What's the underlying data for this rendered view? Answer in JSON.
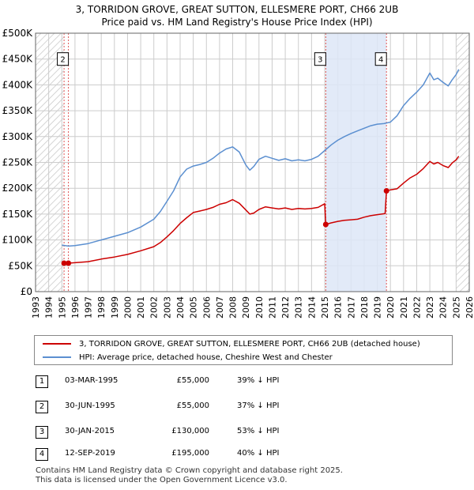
{
  "header": {
    "line1": "3, TORRIDON GROVE, GREAT SUTTON, ELLESMERE PORT, CH66 2UB",
    "line2": "Price paid vs. HM Land Registry's House Price Index (HPI)"
  },
  "colors": {
    "price_line": "#cc0000",
    "hpi_line": "#5b8fd0",
    "shade": "#dde6f7",
    "grid": "#cccccc"
  },
  "chart_data": {
    "type": "line",
    "xlim": [
      1993,
      2026
    ],
    "ylim": [
      0,
      500000
    ],
    "x_ticks": [
      1993,
      1994,
      1995,
      1996,
      1997,
      1998,
      1999,
      2000,
      2001,
      2002,
      2003,
      2004,
      2005,
      2006,
      2007,
      2008,
      2009,
      2010,
      2011,
      2012,
      2013,
      2014,
      2015,
      2016,
      2017,
      2018,
      2019,
      2020,
      2021,
      2022,
      2023,
      2024,
      2025,
      2026
    ],
    "y_ticks": [
      {
        "value": 0,
        "label": "£0"
      },
      {
        "value": 50000,
        "label": "£50K"
      },
      {
        "value": 100000,
        "label": "£100K"
      },
      {
        "value": 150000,
        "label": "£150K"
      },
      {
        "value": 200000,
        "label": "£200K"
      },
      {
        "value": 250000,
        "label": "£250K"
      },
      {
        "value": 300000,
        "label": "£300K"
      },
      {
        "value": 350000,
        "label": "£350K"
      },
      {
        "value": 400000,
        "label": "£400K"
      },
      {
        "value": 450000,
        "label": "£450K"
      },
      {
        "value": 500000,
        "label": "£500K"
      }
    ],
    "hatched_before": 1995.17,
    "hatched_after": 2025.0,
    "shaded_ranges": [
      [
        2015.08,
        2019.7
      ]
    ],
    "series": [
      {
        "name": "3, TORRIDON GROVE, GREAT SUTTON, ELLESMERE PORT, CH66 2UB (detached house)",
        "x": [
          1995.17,
          1995.5,
          1996,
          1997,
          1998,
          1999,
          2000,
          2001,
          2002,
          2002.5,
          2003,
          2003.5,
          2004,
          2004.5,
          2005,
          2005.5,
          2006,
          2006.5,
          2007,
          2007.5,
          2008,
          2008.5,
          2009,
          2009.3,
          2009.6,
          2010,
          2010.5,
          2011,
          2011.5,
          2012,
          2012.5,
          2013,
          2013.5,
          2014,
          2014.5,
          2015.0,
          2015.08,
          2015.5,
          2016,
          2016.5,
          2017,
          2017.5,
          2018,
          2018.5,
          2019,
          2019.6,
          2019.7,
          2020,
          2020.5,
          2021,
          2021.5,
          2022,
          2022.5,
          2023,
          2023.3,
          2023.6,
          2024,
          2024.4,
          2024.7,
          2025,
          2025.2
        ],
        "values": [
          55000,
          55000,
          56000,
          58000,
          63000,
          67000,
          72000,
          79000,
          87000,
          95000,
          106000,
          118000,
          132000,
          143000,
          153000,
          156000,
          159000,
          163000,
          169000,
          172000,
          178000,
          171000,
          158000,
          150000,
          152000,
          159000,
          164000,
          162000,
          160000,
          162000,
          159000,
          161000,
          160000,
          161000,
          163000,
          170000,
          130000,
          133000,
          136000,
          138000,
          139000,
          140000,
          144000,
          147000,
          149000,
          151000,
          195000,
          197000,
          199000,
          210000,
          220000,
          227000,
          238000,
          252000,
          247000,
          250000,
          244000,
          240000,
          249000,
          255000,
          262000
        ]
      },
      {
        "name": "HPI: Average price, detached house, Cheshire West and Chester",
        "x": [
          1995.0,
          1995.5,
          1996,
          1997,
          1998,
          1999,
          2000,
          2001,
          2002,
          2002.5,
          2003,
          2003.5,
          2004,
          2004.5,
          2005,
          2005.5,
          2006,
          2006.5,
          2007,
          2007.5,
          2008,
          2008.5,
          2009,
          2009.3,
          2009.6,
          2010,
          2010.5,
          2011,
          2011.5,
          2012,
          2012.5,
          2013,
          2013.5,
          2014,
          2014.5,
          2015,
          2015.5,
          2016,
          2016.5,
          2017,
          2017.5,
          2018,
          2018.5,
          2019,
          2019.5,
          2020,
          2020.5,
          2021,
          2021.5,
          2022,
          2022.5,
          2023,
          2023.3,
          2023.6,
          2024,
          2024.4,
          2024.7,
          2025,
          2025.2
        ],
        "values": [
          90000,
          88000,
          89000,
          93000,
          100000,
          107000,
          114000,
          125000,
          140000,
          155000,
          175000,
          195000,
          222000,
          237000,
          243000,
          246000,
          250000,
          258000,
          268000,
          276000,
          280000,
          270000,
          245000,
          235000,
          242000,
          256000,
          262000,
          258000,
          254000,
          257000,
          253000,
          255000,
          253000,
          256000,
          262000,
          273000,
          284000,
          293000,
          300000,
          306000,
          311000,
          316000,
          321000,
          324000,
          325000,
          328000,
          340000,
          360000,
          374000,
          386000,
          400000,
          423000,
          410000,
          413000,
          405000,
          398000,
          410000,
          420000,
          430000
        ]
      }
    ],
    "markers": [
      {
        "id": "1",
        "x": 1995.17,
        "value": 55000
      },
      {
        "id": "2",
        "x": 1995.5,
        "value": 55000
      },
      {
        "id": "3",
        "x": 2015.08,
        "value": 130000
      },
      {
        "id": "4",
        "x": 2019.7,
        "value": 195000
      }
    ],
    "marker_labels_shown": [
      "2",
      "3",
      "4"
    ],
    "annotation_value": 450000
  },
  "legend": {
    "price_label": "3, TORRIDON GROVE, GREAT SUTTON, ELLESMERE PORT, CH66 2UB (detached house)",
    "hpi_label": "HPI: Average price, detached house, Cheshire West and Chester"
  },
  "transactions": [
    {
      "num": "1",
      "date": "03-MAR-1995",
      "price": "£55,000",
      "hpi": "39% ↓ HPI"
    },
    {
      "num": "2",
      "date": "30-JUN-1995",
      "price": "£55,000",
      "hpi": "37% ↓ HPI"
    },
    {
      "num": "3",
      "date": "30-JAN-2015",
      "price": "£130,000",
      "hpi": "53% ↓ HPI"
    },
    {
      "num": "4",
      "date": "12-SEP-2019",
      "price": "£195,000",
      "hpi": "40% ↓ HPI"
    }
  ],
  "footer": {
    "line1": "Contains HM Land Registry data © Crown copyright and database right 2025.",
    "line2": "This data is licensed under the Open Government Licence v3.0."
  }
}
